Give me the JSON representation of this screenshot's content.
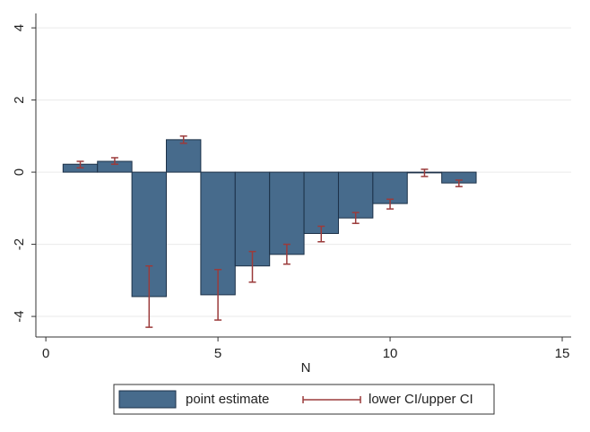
{
  "chart_data": {
    "type": "bar",
    "x_label": "N",
    "x": [
      1,
      2,
      3,
      4,
      5,
      6,
      7,
      8,
      9,
      10,
      11,
      12
    ],
    "series": [
      {
        "name": "point estimate",
        "color": "#476b8c",
        "values": [
          0.22,
          0.3,
          -3.45,
          0.9,
          -3.4,
          -2.6,
          -2.28,
          -1.7,
          -1.27,
          -0.87,
          -0.02,
          -0.3
        ]
      }
    ],
    "ci": {
      "name": "lower CI/upper CI",
      "color": "#9b3b3b",
      "lower": [
        0.12,
        0.22,
        -4.3,
        0.8,
        -4.1,
        -3.05,
        -2.55,
        -1.93,
        -1.42,
        -1.02,
        -0.12,
        -0.4
      ],
      "upper": [
        0.3,
        0.4,
        -2.6,
        1.0,
        -2.7,
        -2.2,
        -2.0,
        -1.5,
        -1.12,
        -0.75,
        0.08,
        -0.22
      ]
    },
    "bar_width": 1,
    "xlim": [
      -0.29,
      15.26
    ],
    "xticks": [
      0,
      5,
      10,
      15
    ],
    "ylim": [
      -4.57,
      4.4
    ],
    "yticks": [
      -4,
      -2,
      0,
      2,
      4
    ],
    "grid": true
  }
}
